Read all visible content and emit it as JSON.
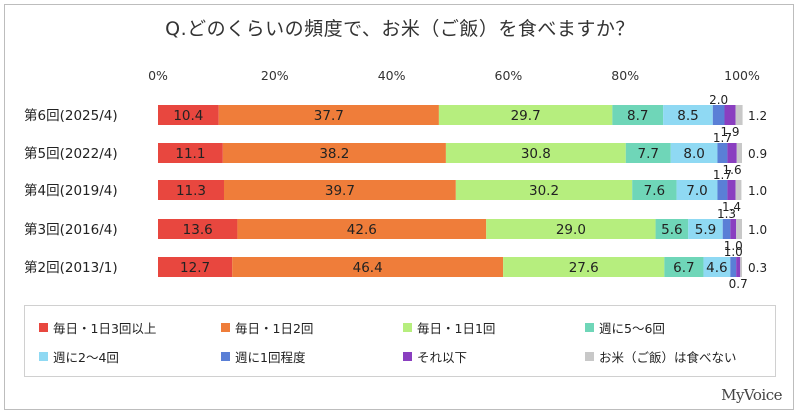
{
  "title": "Q.どのくらいの頻度で、お米（ご飯）を食べますか？",
  "brand": "MyVoice",
  "chart_data": {
    "type": "bar",
    "orientation": "horizontal",
    "stacked": true,
    "xlim": [
      0,
      100
    ],
    "x_ticks": [
      "0%",
      "20%",
      "40%",
      "60%",
      "80%",
      "100%"
    ],
    "categories": [
      "第6回(2025/4)",
      "第5回(2022/4)",
      "第4回(2019/4)",
      "第3回(2016/4)",
      "第2回(2013/1)"
    ],
    "series": [
      {
        "name": "毎日・1日3回以上",
        "color": "#e8473f",
        "values": [
          10.4,
          11.1,
          11.3,
          13.6,
          12.7
        ],
        "labels": [
          "10.4",
          "11.1",
          "11.3",
          "13.6",
          "12.7"
        ]
      },
      {
        "name": "毎日・1日2回",
        "color": "#ef7d3a",
        "values": [
          37.7,
          38.2,
          39.7,
          42.6,
          46.4
        ],
        "labels": [
          "37.7",
          "38.2",
          "39.7",
          "42.6",
          "46.4"
        ]
      },
      {
        "name": "毎日・1日1回",
        "color": "#b6ee7e",
        "values": [
          29.7,
          30.8,
          30.2,
          29.0,
          27.6
        ],
        "labels": [
          "29.7",
          "30.8",
          "30.2",
          "29.0",
          "27.6"
        ]
      },
      {
        "name": "週に5～6回",
        "color": "#6fd6b8",
        "values": [
          8.7,
          7.7,
          7.6,
          5.6,
          6.7
        ],
        "labels": [
          "8.7",
          "7.7",
          "7.6",
          "5.6",
          "6.7"
        ]
      },
      {
        "name": "週に2～4回",
        "color": "#8fd9f3",
        "values": [
          8.5,
          8.0,
          7.0,
          5.9,
          4.6
        ],
        "labels": [
          "8.5",
          "8.0",
          "7.0",
          "5.9",
          "4.6"
        ]
      },
      {
        "name": "週に1回程度",
        "color": "#5a7fd6",
        "values": [
          2.0,
          1.7,
          1.7,
          1.3,
          1.0
        ],
        "labels": [
          "2.0",
          "1.7",
          "1.7",
          "1.3",
          "1.0"
        ]
      },
      {
        "name": "それ以下",
        "color": "#8a3fc0",
        "values": [
          1.9,
          1.6,
          1.4,
          1.0,
          0.7
        ],
        "labels": [
          "1.9",
          "1.6",
          "1.4",
          "1.0",
          "0.7"
        ]
      },
      {
        "name": "お米（ご飯）は食べない",
        "color": "#c8c8c8",
        "values": [
          1.2,
          0.9,
          1.0,
          1.0,
          0.3
        ],
        "labels": [
          "1.2",
          "0.9",
          "1.0",
          "1.0",
          "0.3"
        ]
      }
    ],
    "legend_position": "bottom",
    "grid": false
  }
}
